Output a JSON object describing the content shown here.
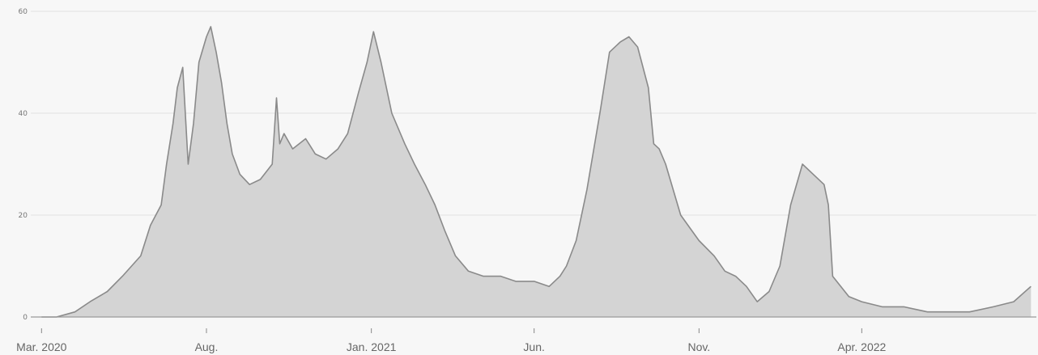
{
  "chart_data": {
    "type": "area",
    "title": "",
    "xlabel": "",
    "ylabel": "",
    "ylim": [
      0,
      60
    ],
    "yticks": [
      0,
      20,
      40,
      60
    ],
    "ytick_labels": [
      "0",
      "20",
      "40",
      "60"
    ],
    "xlim": [
      "2020-02-20",
      "2022-09-10"
    ],
    "xticks": [
      {
        "date": "2020-03-01",
        "label": "Mar. 2020"
      },
      {
        "date": "2020-08-01",
        "label": "Aug."
      },
      {
        "date": "2021-01-01",
        "label": "Jan. 2021"
      },
      {
        "date": "2021-06-01",
        "label": "Jun."
      },
      {
        "date": "2021-11-01",
        "label": "Nov."
      },
      {
        "date": "2022-04-01",
        "label": "Apr. 2022"
      }
    ],
    "grid": true,
    "colors": {
      "fill": "#d4d4d4",
      "line": "#8a8a8a",
      "background": "#f7f7f7"
    },
    "series": [
      {
        "x": [
          "2020-03-01",
          "2020-03-15",
          "2020-04-01",
          "2020-04-15",
          "2020-05-01",
          "2020-05-15",
          "2020-06-01",
          "2020-06-10",
          "2020-06-20",
          "2020-06-25",
          "2020-07-01",
          "2020-07-05",
          "2020-07-10",
          "2020-07-15",
          "2020-07-20",
          "2020-07-25",
          "2020-08-01",
          "2020-08-05",
          "2020-08-10",
          "2020-08-15",
          "2020-08-20",
          "2020-08-25",
          "2020-09-01",
          "2020-09-10",
          "2020-09-20",
          "2020-10-01",
          "2020-10-05",
          "2020-10-08",
          "2020-10-12",
          "2020-10-20",
          "2020-11-01",
          "2020-11-10",
          "2020-11-20",
          "2020-12-01",
          "2020-12-10",
          "2020-12-20",
          "2020-12-28",
          "2021-01-03",
          "2021-01-10",
          "2021-01-20",
          "2021-02-01",
          "2021-02-10",
          "2021-02-20",
          "2021-03-01",
          "2021-03-10",
          "2021-03-20",
          "2021-04-01",
          "2021-04-15",
          "2021-05-01",
          "2021-05-15",
          "2021-06-01",
          "2021-06-15",
          "2021-06-25",
          "2021-07-01",
          "2021-07-10",
          "2021-07-20",
          "2021-08-01",
          "2021-08-10",
          "2021-08-20",
          "2021-08-28",
          "2021-09-05",
          "2021-09-15",
          "2021-09-20",
          "2021-09-25",
          "2021-10-01",
          "2021-10-15",
          "2021-11-01",
          "2021-11-15",
          "2021-11-25",
          "2021-12-05",
          "2021-12-15",
          "2021-12-25",
          "2022-01-05",
          "2022-01-15",
          "2022-01-25",
          "2022-02-05",
          "2022-02-15",
          "2022-02-25",
          "2022-03-01",
          "2022-03-05",
          "2022-03-20",
          "2022-04-01",
          "2022-04-20",
          "2022-05-10",
          "2022-06-01",
          "2022-06-20",
          "2022-07-10",
          "2022-08-01",
          "2022-08-20",
          "2022-09-05"
        ],
        "values": [
          0,
          0,
          1,
          3,
          5,
          8,
          12,
          18,
          22,
          30,
          38,
          45,
          49,
          30,
          38,
          50,
          55,
          57,
          52,
          46,
          38,
          32,
          28,
          26,
          27,
          30,
          43,
          34,
          36,
          33,
          35,
          32,
          31,
          33,
          36,
          44,
          50,
          56,
          50,
          40,
          34,
          30,
          26,
          22,
          17,
          12,
          9,
          8,
          8,
          7,
          7,
          6,
          8,
          10,
          15,
          25,
          40,
          52,
          54,
          55,
          53,
          45,
          34,
          33,
          30,
          20,
          15,
          12,
          9,
          8,
          6,
          3,
          5,
          10,
          22,
          30,
          28,
          26,
          22,
          8,
          4,
          3,
          2,
          2,
          1,
          1,
          1,
          2,
          3,
          6
        ]
      }
    ]
  }
}
